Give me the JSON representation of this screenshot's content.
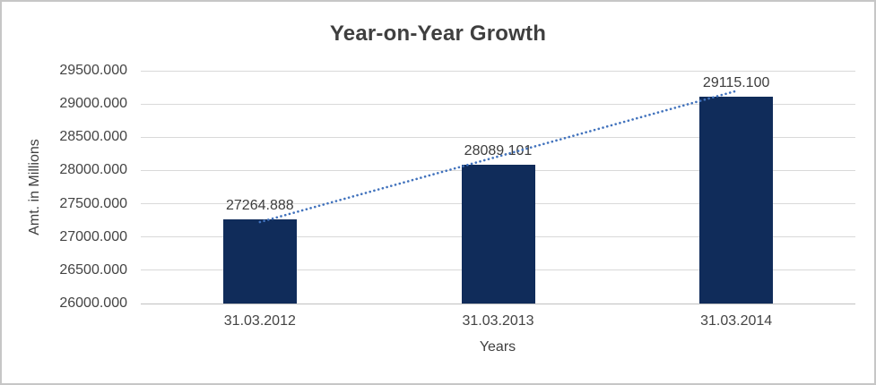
{
  "chart_data": {
    "type": "bar",
    "title": "Year-on-Year Growth",
    "xlabel": "Years",
    "ylabel": "Amt. in Millions",
    "categories": [
      "31.03.2012",
      "31.03.2013",
      "31.03.2014"
    ],
    "series": [
      {
        "name": "Amt. in Millions",
        "values": [
          27264.888,
          28089.101,
          29115.1
        ]
      }
    ],
    "data_labels": [
      "27264.888",
      "28089.101",
      "29115.100"
    ],
    "ylim": [
      26000,
      29500
    ],
    "ytick_step": 500,
    "ytick_labels": [
      "26000.000",
      "26500.000",
      "27000.000",
      "27500.000",
      "28000.000",
      "28500.000",
      "29000.000",
      "29500.000"
    ],
    "grid": true,
    "legend_position": "none",
    "trendline": {
      "type": "linear",
      "style": "dotted",
      "color": "#4273bd"
    },
    "colors": {
      "bar": "#102c5a",
      "gridline": "#d9d9d9",
      "axis_line": "#c0c0c0",
      "tick_text": "#444444",
      "title_text": "#3f3f3f",
      "background": "#ffffff",
      "frame_border": "#c6c6c6"
    }
  }
}
